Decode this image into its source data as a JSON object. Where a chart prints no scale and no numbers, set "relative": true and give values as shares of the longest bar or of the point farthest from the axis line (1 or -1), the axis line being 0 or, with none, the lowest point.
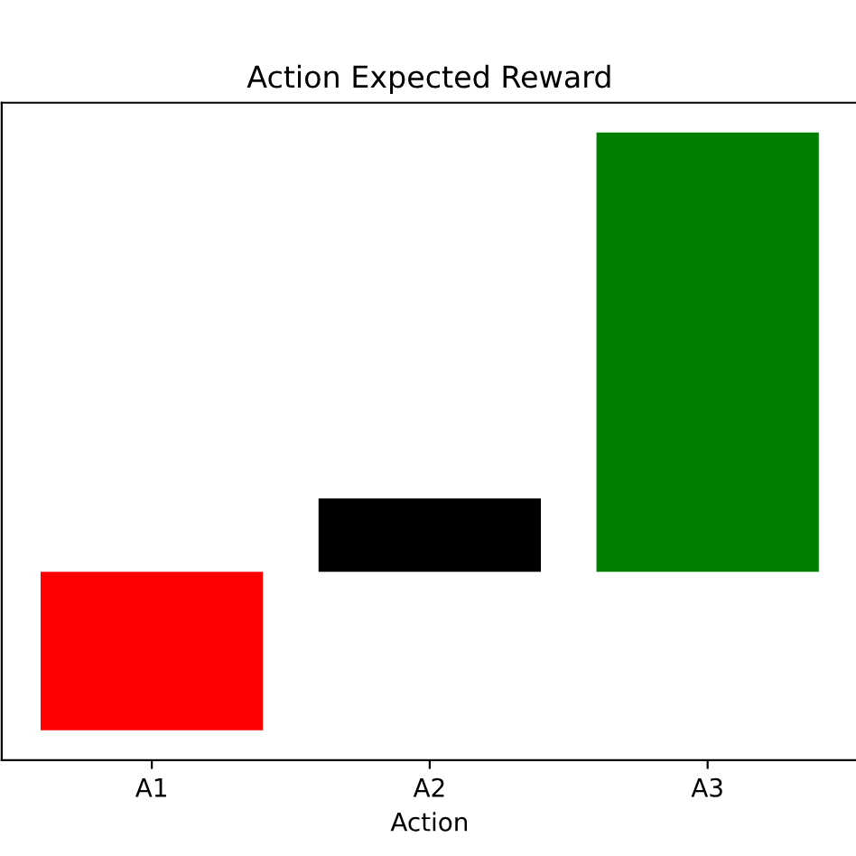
{
  "chart_data": {
    "type": "bar",
    "title": "Action Expected Reward",
    "xlabel": "Action",
    "categories": [
      "A1",
      "A2",
      "A3"
    ],
    "relative": true,
    "values": [
      -0.361,
      0.167,
      1
    ],
    "colors": [
      "#ff0000",
      "#000000",
      "#008000"
    ],
    "tick_labels": "x",
    "grid": false
  }
}
